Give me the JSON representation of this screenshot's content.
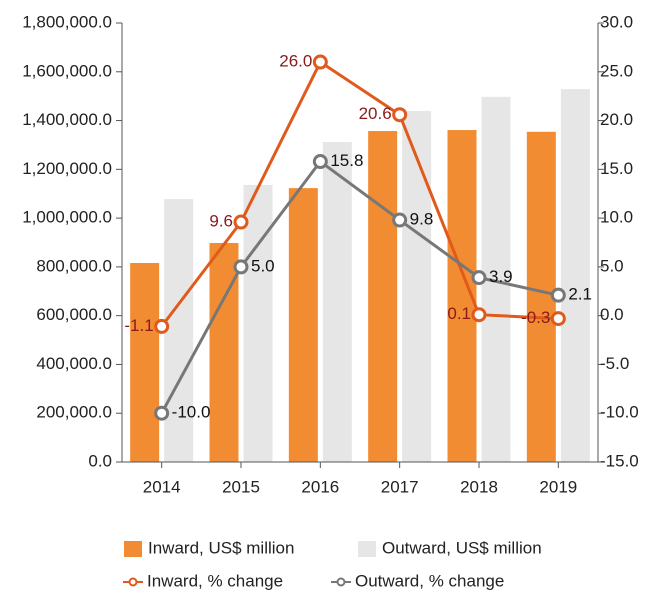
{
  "chart_data": {
    "type": "bar_line",
    "categories": [
      "2014",
      "2015",
      "2016",
      "2017",
      "2018",
      "2019"
    ],
    "ylim": [
      0,
      1800000
    ],
    "yticks": [
      {
        "value": 0,
        "label": "0.0"
      },
      {
        "value": 200000,
        "label": "200,000.0"
      },
      {
        "value": 400000,
        "label": "400,000.0"
      },
      {
        "value": 600000,
        "label": "600,000.0"
      },
      {
        "value": 800000,
        "label": "800,000.0"
      },
      {
        "value": 1000000,
        "label": "1,000,000.0"
      },
      {
        "value": 1200000,
        "label": "1,200,000.0"
      },
      {
        "value": 1400000,
        "label": "1,400,000.0"
      },
      {
        "value": 1600000,
        "label": "1,600,000.0"
      },
      {
        "value": 1800000,
        "label": "1,800,000.0"
      }
    ],
    "y2lim": [
      -15,
      30
    ],
    "y2ticks": [
      {
        "value": -15,
        "label": "-15.0"
      },
      {
        "value": -10,
        "label": "-10.0"
      },
      {
        "value": -5,
        "label": "-5.0"
      },
      {
        "value": 0,
        "label": "0.0"
      },
      {
        "value": 5,
        "label": "5.0"
      },
      {
        "value": 10,
        "label": "10.0"
      },
      {
        "value": 15,
        "label": "15.0"
      },
      {
        "value": 20,
        "label": "20.0"
      },
      {
        "value": 25,
        "label": "25.0"
      },
      {
        "value": 30,
        "label": "30.0"
      }
    ],
    "series": [
      {
        "name": "Inward, US$ million",
        "type": "bar",
        "color": "#f28c33",
        "values": [
          816000,
          898000,
          1123000,
          1357000,
          1361000,
          1354000
        ]
      },
      {
        "name": "Outward, US$ million",
        "type": "bar",
        "color": "#e6e6e6",
        "values": [
          1078000,
          1136000,
          1312000,
          1439000,
          1497000,
          1529000
        ]
      },
      {
        "name": "Inward, % change",
        "type": "line",
        "axis": "y2",
        "color": "#e05a1c",
        "label_color": "#8b1a1a",
        "values": [
          -1.1,
          9.6,
          26,
          20.6,
          0.1,
          -0.3
        ],
        "value_labels": [
          "-1.1",
          "9.6",
          "26.0",
          "20.6",
          "0.1",
          "-0.3"
        ]
      },
      {
        "name": "Outward, % change",
        "type": "line",
        "axis": "y2",
        "color": "#777777",
        "label_color": "#111111",
        "values": [
          -10,
          5,
          15.8,
          9.8,
          3.9,
          2.1
        ],
        "value_labels": [
          "-10.0",
          "5.0",
          "15.8",
          "9.8",
          "3.9",
          "2.1"
        ]
      }
    ],
    "legend": "bottom"
  }
}
